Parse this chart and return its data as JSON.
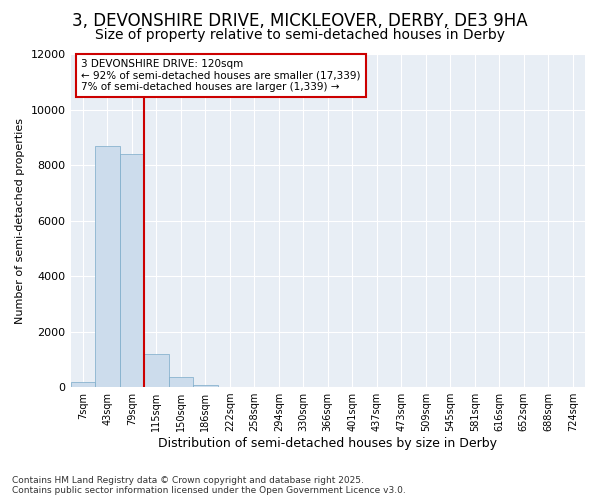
{
  "title_line1": "3, DEVONSHIRE DRIVE, MICKLEOVER, DERBY, DE3 9HA",
  "title_line2": "Size of property relative to semi-detached houses in Derby",
  "xlabel": "Distribution of semi-detached houses by size in Derby",
  "ylabel": "Number of semi-detached properties",
  "categories": [
    "7sqm",
    "43sqm",
    "79sqm",
    "115sqm",
    "150sqm",
    "186sqm",
    "222sqm",
    "258sqm",
    "294sqm",
    "330sqm",
    "366sqm",
    "401sqm",
    "437sqm",
    "473sqm",
    "509sqm",
    "545sqm",
    "581sqm",
    "616sqm",
    "652sqm",
    "688sqm",
    "724sqm"
  ],
  "values": [
    200,
    8700,
    8400,
    1200,
    350,
    70,
    20,
    3,
    0,
    0,
    0,
    0,
    0,
    0,
    0,
    0,
    0,
    0,
    0,
    0,
    0
  ],
  "bar_color": "#ccdcec",
  "bar_edge_color": "#7aaac8",
  "vline_color": "#cc0000",
  "vline_index": 3,
  "ylim": [
    0,
    12000
  ],
  "yticks": [
    0,
    2000,
    4000,
    6000,
    8000,
    10000,
    12000
  ],
  "annotation_text": "3 DEVONSHIRE DRIVE: 120sqm\n← 92% of semi-detached houses are smaller (17,339)\n7% of semi-detached houses are larger (1,339) →",
  "annotation_box_facecolor": "#ffffff",
  "annotation_box_edgecolor": "#cc0000",
  "footer_line1": "Contains HM Land Registry data © Crown copyright and database right 2025.",
  "footer_line2": "Contains public sector information licensed under the Open Government Licence v3.0.",
  "background_color": "#ffffff",
  "plot_bg_color": "#e8eef5",
  "grid_color": "#ffffff",
  "title_fontsize": 12,
  "subtitle_fontsize": 10,
  "bar_width": 1.0
}
